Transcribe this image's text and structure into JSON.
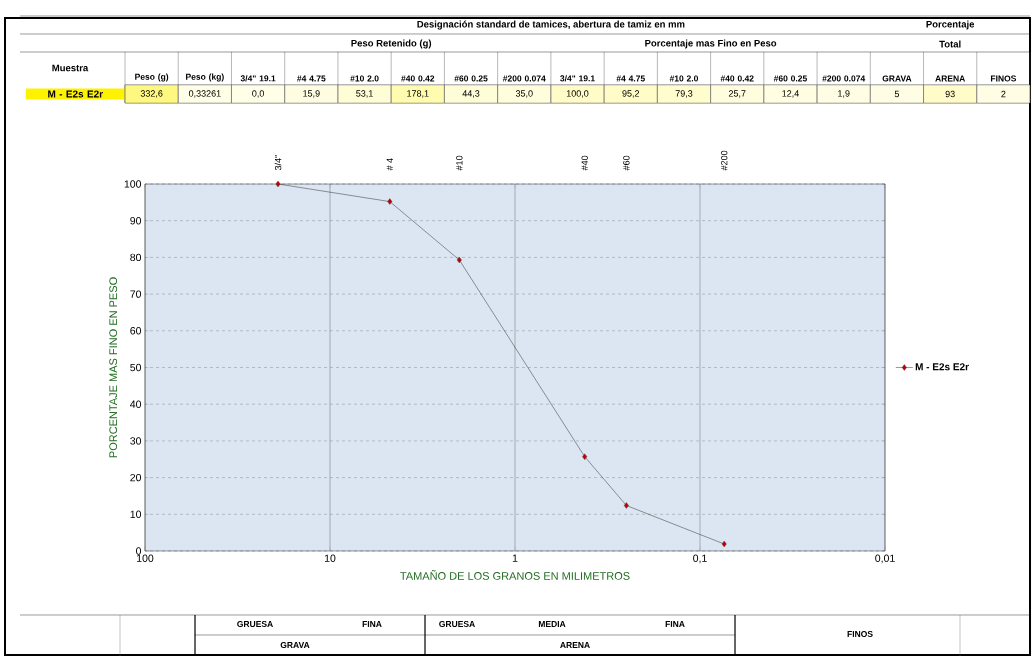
{
  "chart_data": [
    {
      "type": "heatmap",
      "title": "Designación standard de tamices,  abertura de tamiz en mm",
      "ylabel": "Muestra",
      "annotations": [
        "Porcentaje",
        "Peso Retenido (g)",
        "Porcentaje mas Fino en Peso",
        "Total"
      ],
      "categories": [
        "Peso (g)",
        "Peso (kg)",
        "3/4\" 19.1",
        "#4 4.75",
        "#10 2.0",
        "#40 0.42",
        "#60 0.25",
        "#200 0.074",
        "3/4\" 19.1",
        "#4 4.75",
        "#10 2.0",
        "#40 0.42",
        "#60 0.25",
        "#200 0.074",
        "GRAVA",
        "ARENA",
        "FINOS"
      ],
      "y_categories": [
        "M - E2s E2r"
      ],
      "cells": [
        [
          332.6,
          0.33261,
          0.0,
          15.9,
          53.1,
          178.1,
          44.3,
          35.0,
          100.0,
          95.2,
          79.3,
          25.7,
          12.4,
          1.9,
          5,
          93,
          2
        ]
      ],
      "cell_labels": [
        [
          "332,6",
          "0,33261",
          "0,0",
          "15,9",
          "53,1",
          "178,1",
          "44,3",
          "35,0",
          "100,0",
          "95,2",
          "79,3",
          "25,7",
          "12,4",
          "1,9",
          "5",
          "93",
          "2"
        ]
      ]
    },
    {
      "type": "line",
      "xlabel": "TAMAÑO DE LOS GRANOS  EN MILIMETROS",
      "ylabel": "PORCENTAJE  MAS FINO EN PESO",
      "x": [
        19.1,
        4.75,
        2.0,
        0.42,
        0.25,
        0.074
      ],
      "series": [
        {
          "name": "M - E2s E2r",
          "color": "#000000",
          "values": [
            100.0,
            95.2,
            79.3,
            25.7,
            12.4,
            1.9
          ]
        }
      ],
      "marker": "diamond",
      "log": "x",
      "grid": true,
      "legend": "right",
      "xlim": [
        100,
        0.01
      ],
      "xticks": [
        {
          "value": 100,
          "label": "100"
        },
        {
          "value": 10,
          "label": "10"
        },
        {
          "value": 1,
          "label": "1"
        },
        {
          "value": 0.1,
          "label": "0,1"
        },
        {
          "value": 0.01,
          "label": "0,01"
        }
      ],
      "ylim": [
        0,
        100
      ],
      "yticks": [
        0,
        10,
        20,
        30,
        40,
        50,
        60,
        70,
        80,
        90,
        100
      ],
      "annotations": [
        "GRUESA",
        "FINA",
        "GRUESA",
        "MEDIA",
        "FINA",
        "GRAVA",
        "ARENA",
        "FINOS",
        "3/4\"",
        "# 4",
        "#10",
        "#40",
        "#60",
        "#200"
      ]
    }
  ]
}
